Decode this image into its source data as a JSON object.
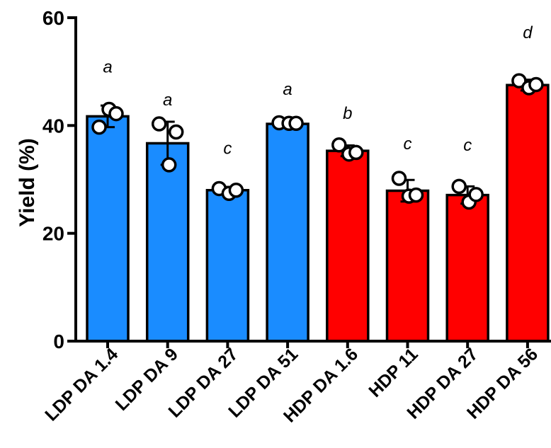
{
  "chart_data": {
    "type": "bar",
    "title": "",
    "xlabel": "",
    "ylabel": "Yield (%)",
    "ylim": [
      0,
      60
    ],
    "yticks": [
      0,
      20,
      40,
      60
    ],
    "grid": false,
    "categories": [
      "LDP DA 1.4",
      "LDP DA 9",
      "LDP DA 27",
      "LDP DA 51",
      "HDP DA 1.6",
      "HDP 11",
      "HDP DA 27",
      "HDP DA 56"
    ],
    "values": [
      41.7,
      36.7,
      28.0,
      40.3,
      35.3,
      27.9,
      27.1,
      47.5
    ],
    "errors": [
      2.0,
      4.0,
      0.6,
      0.2,
      1.0,
      2.0,
      1.6,
      1.0
    ],
    "points": [
      [
        39.7,
        43.0,
        42.2
      ],
      [
        40.3,
        32.7,
        38.8
      ],
      [
        28.3,
        27.4,
        28.0
      ],
      [
        40.5,
        40.4,
        40.4
      ],
      [
        36.4,
        34.7,
        35.0
      ],
      [
        30.2,
        26.9,
        27.1
      ],
      [
        28.7,
        25.8,
        27.2
      ],
      [
        48.3,
        47.0,
        47.6
      ]
    ],
    "bar_colors": [
      "#1a8cff",
      "#1a8cff",
      "#1a8cff",
      "#1a8cff",
      "#ff0000",
      "#ff0000",
      "#ff0000",
      "#ff0000"
    ],
    "significance": [
      "a",
      "a",
      "c",
      "a",
      "b",
      "c",
      "c",
      "d"
    ],
    "significance_y": [
      49.8,
      43.7,
      34.7,
      45.7,
      41.2,
      35.6,
      35.3,
      56.2
    ]
  },
  "colors": {
    "axis": "#000000",
    "point_fill": "#ffffff"
  }
}
